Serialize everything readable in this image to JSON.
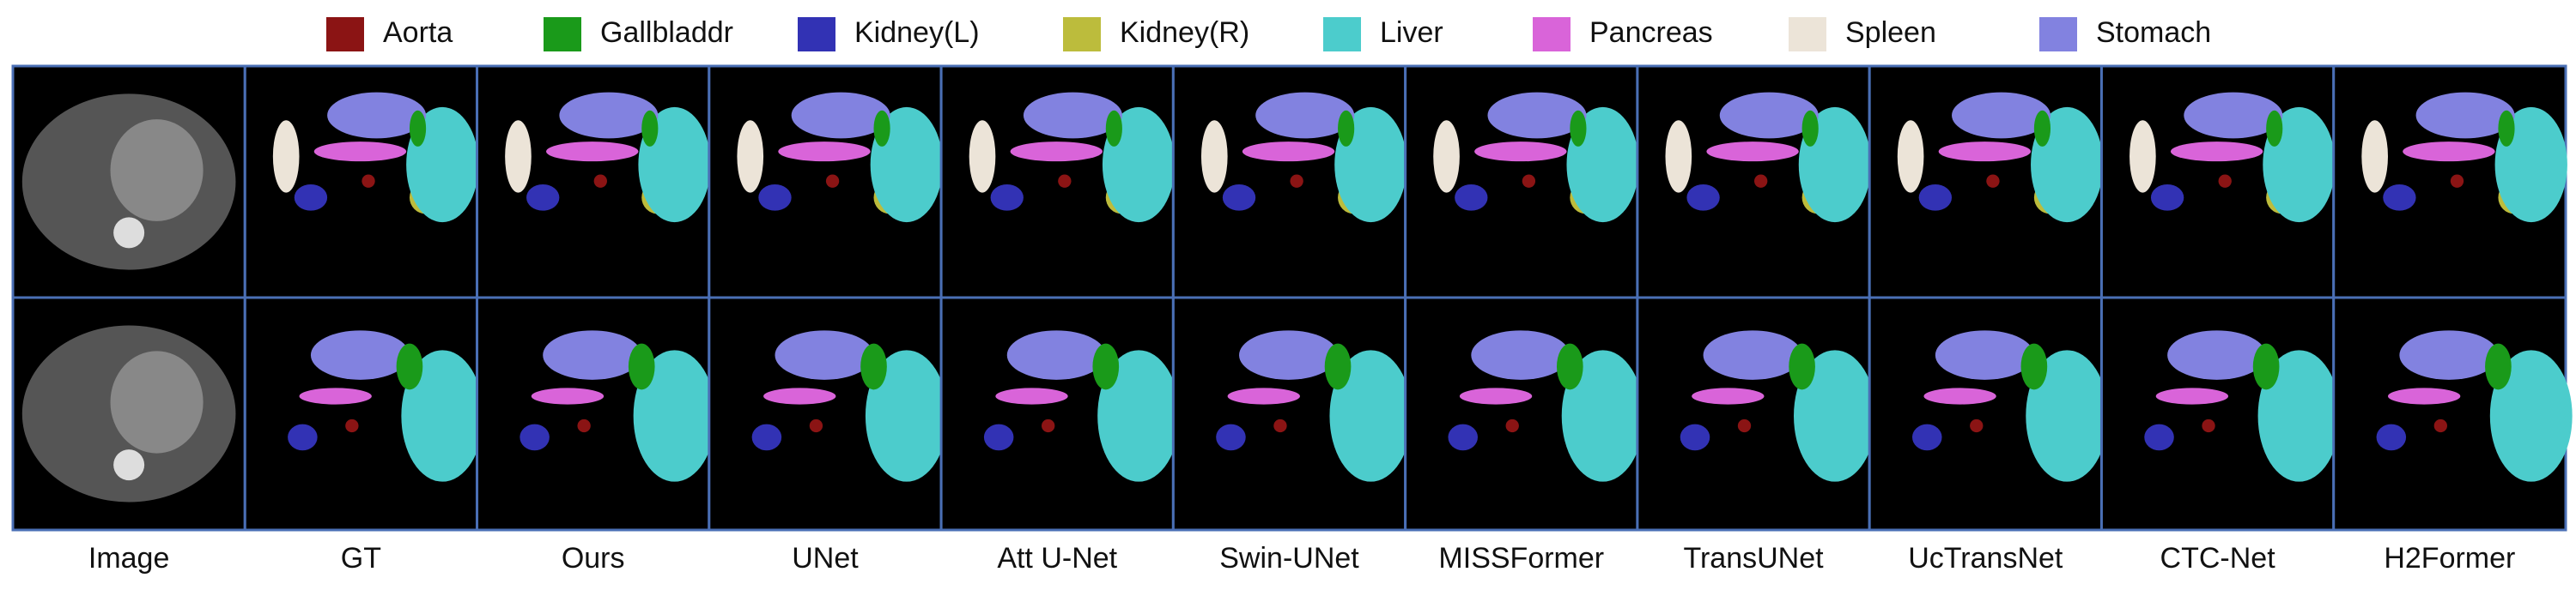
{
  "legend": [
    {
      "label": "Aorta",
      "color": "#8b1414"
    },
    {
      "label": "Gallbladdr",
      "color": "#1a9a1a"
    },
    {
      "label": "Kidney(L)",
      "color": "#3232b4"
    },
    {
      "label": "Kidney(R)",
      "color": "#bcbc3c"
    },
    {
      "label": "Liver",
      "color": "#4ccccc"
    },
    {
      "label": "Pancreas",
      "color": "#d964d9"
    },
    {
      "label": "Spleen",
      "color": "#ece4d8"
    },
    {
      "label": "Stomach",
      "color": "#8282e0"
    }
  ],
  "columns": [
    "Image",
    "GT",
    "Ours",
    "UNet",
    "Att U-Net",
    "Swin-UNet",
    "MISSFormer",
    "TransUNet",
    "UcTransNet",
    "CTC-Net",
    "H2Former"
  ]
}
